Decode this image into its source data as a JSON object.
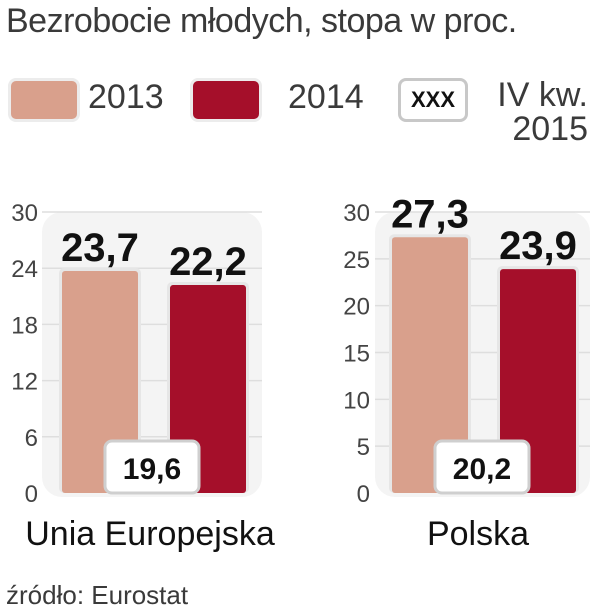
{
  "title": "Bezrobocie młodych, stopa w proc.",
  "legend": {
    "items": [
      {
        "label": "2013",
        "color": "#d9a08c"
      },
      {
        "label": "2014",
        "color": "#a50f2a"
      }
    ],
    "marker_sample": "XXX",
    "marker_label": "IV kw. 2015"
  },
  "source": "źródło: Eurostat",
  "chart_data": [
    {
      "type": "bar",
      "xlabel": "Unia Europejska",
      "categories": [
        "2013",
        "2014"
      ],
      "values": [
        23.7,
        22.2
      ],
      "value_labels": [
        "23,7",
        "22,2"
      ],
      "ylim": [
        0,
        30
      ],
      "yticks": [
        0,
        6,
        12,
        18,
        24,
        30
      ],
      "marker": {
        "label": "IV kw. 2015",
        "value": 19.6,
        "text": "19,6"
      },
      "grid": true
    },
    {
      "type": "bar",
      "xlabel": "Polska",
      "categories": [
        "2013",
        "2014"
      ],
      "values": [
        27.3,
        23.9
      ],
      "value_labels": [
        "27,3",
        "23,9"
      ],
      "ylim": [
        0,
        30
      ],
      "yticks": [
        0,
        5,
        10,
        15,
        20,
        25,
        30
      ],
      "marker": {
        "label": "IV kw. 2015",
        "value": 20.2,
        "text": "20,2"
      },
      "grid": true
    }
  ]
}
